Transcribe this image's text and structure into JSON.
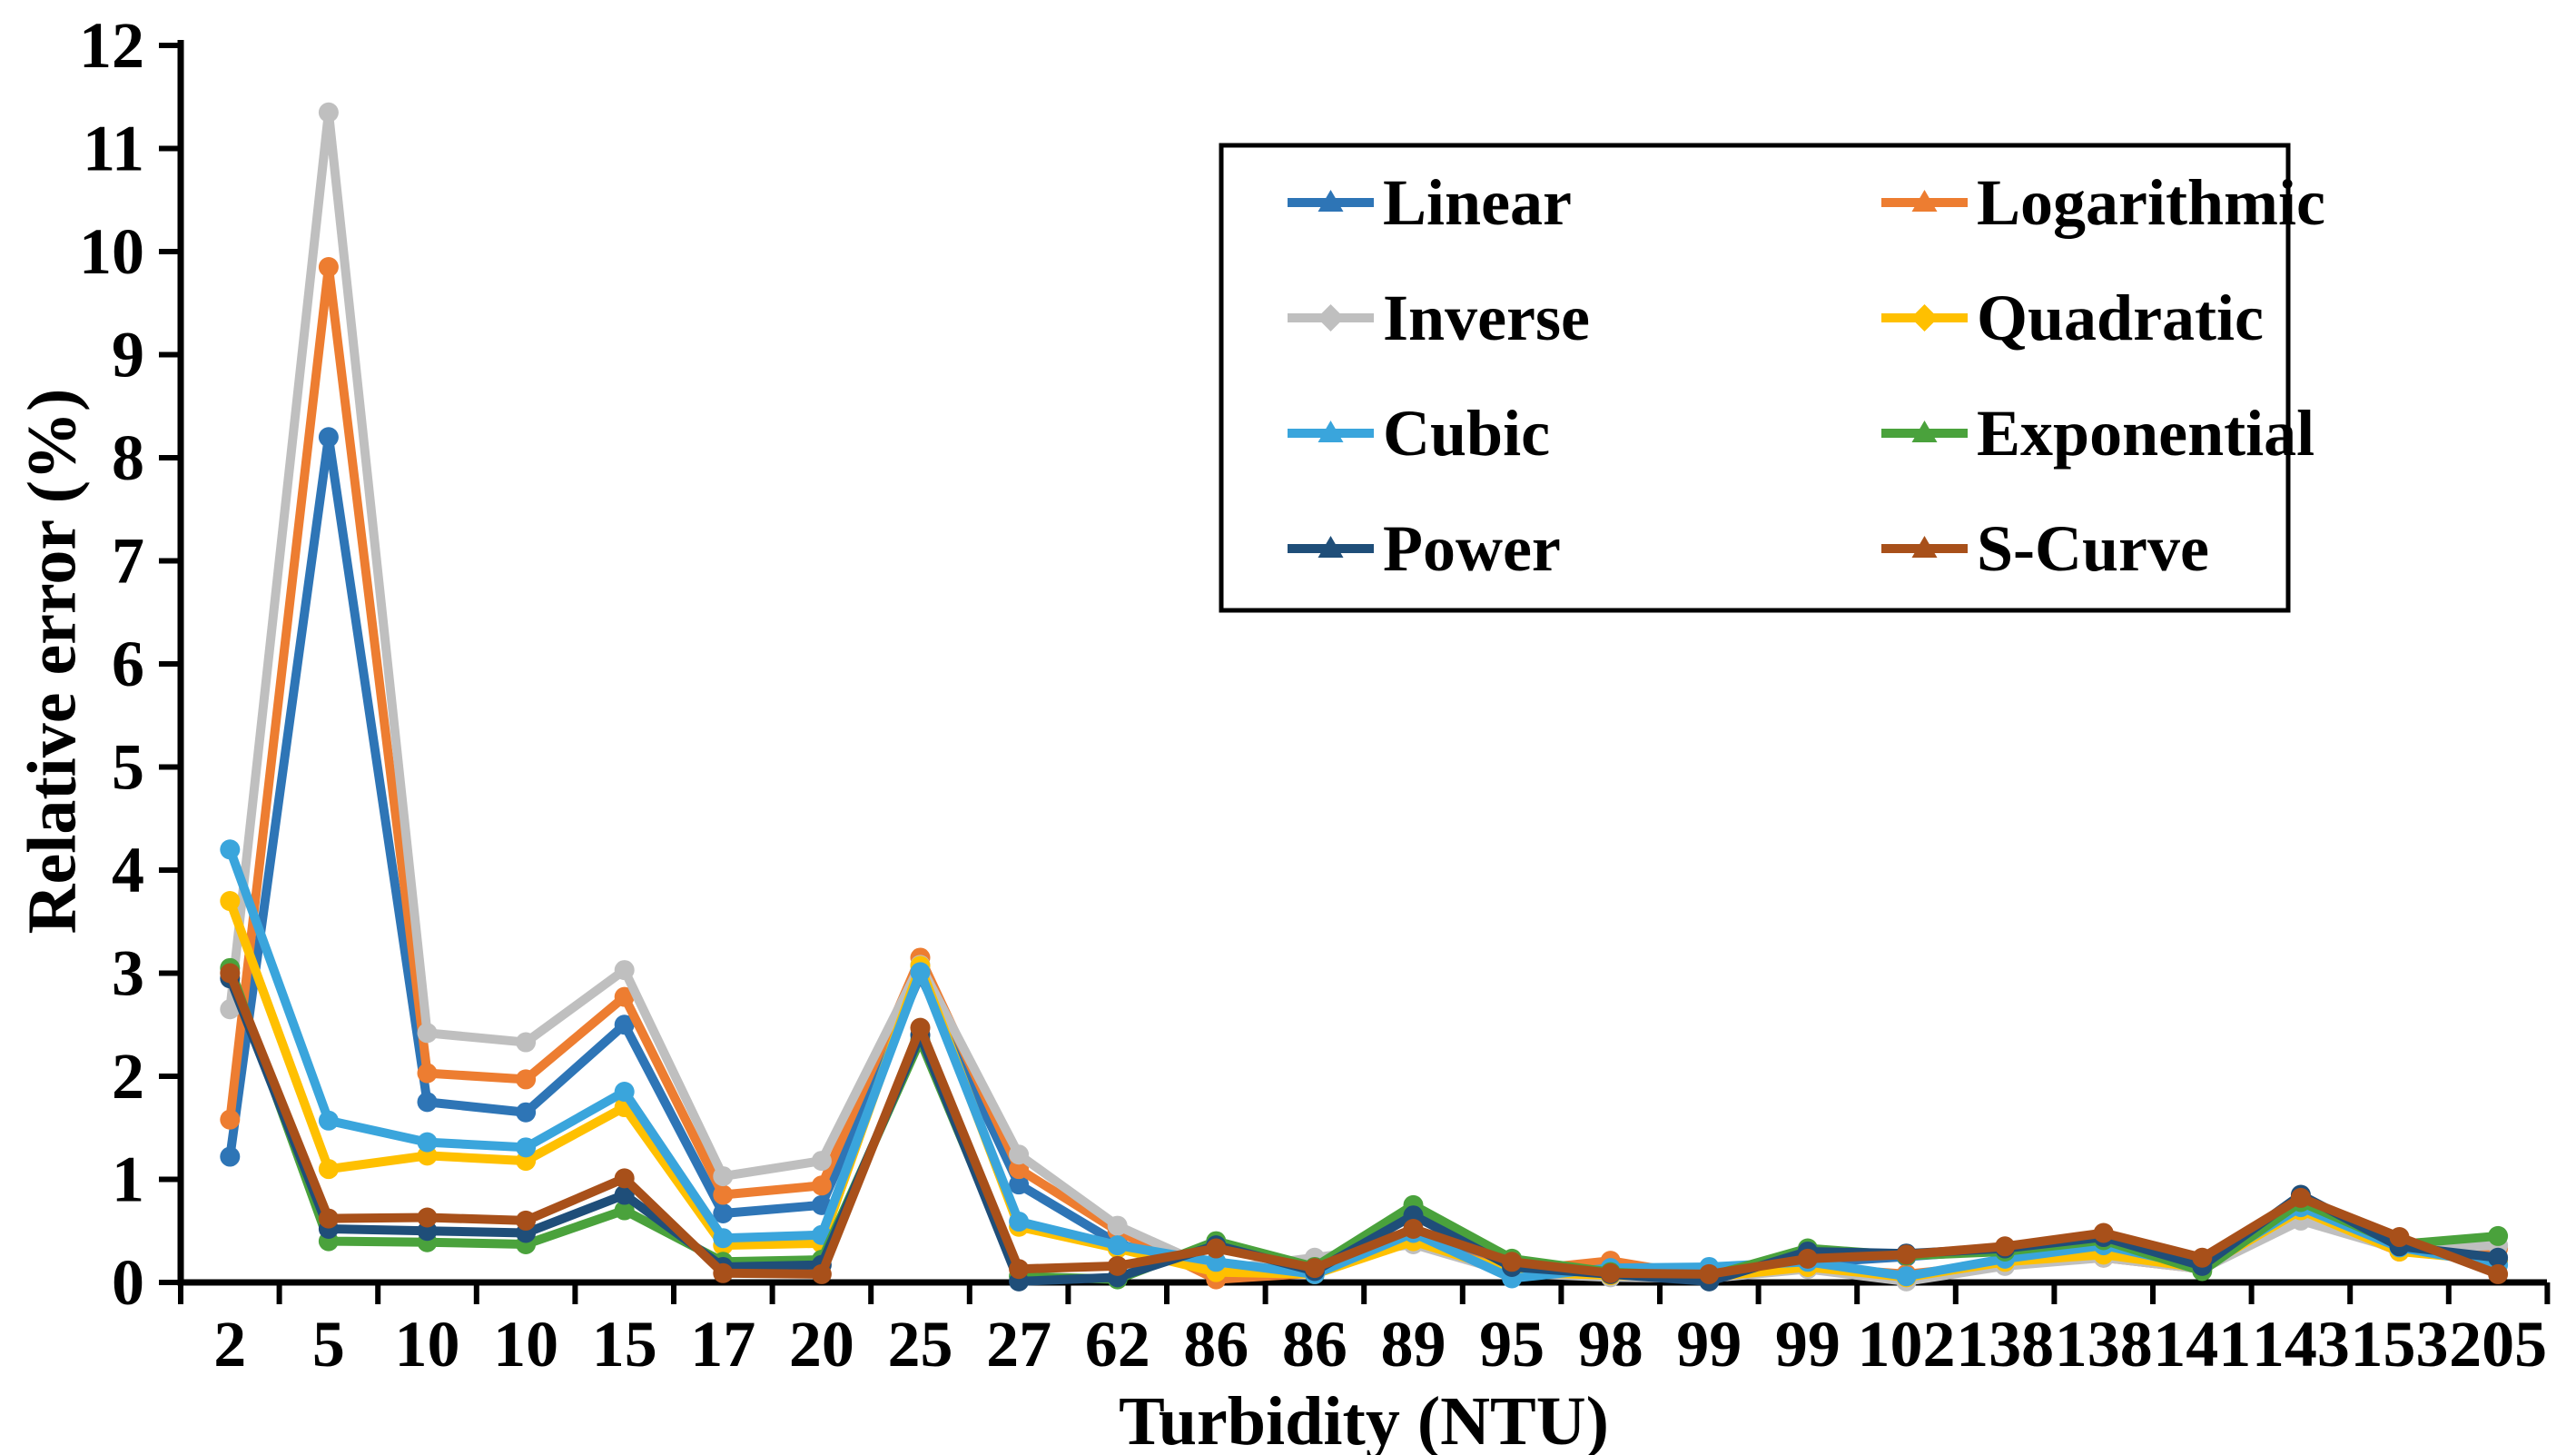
{
  "figure": {
    "background": "#ffffff",
    "axis_color": "#000000",
    "legend_border_color": "#000000"
  },
  "chart_data": {
    "type": "line",
    "title": "",
    "xlabel": "Turbidity (NTU)",
    "ylabel": "Relative error (%)",
    "ylim": [
      0,
      12
    ],
    "y_tick_step": 1,
    "y_ticks": [
      0,
      1,
      2,
      3,
      4,
      5,
      6,
      7,
      8,
      9,
      10,
      11,
      12
    ],
    "grid": false,
    "legend_position": "top-right-box",
    "categories": [
      "2",
      "5",
      "10",
      "10",
      "15",
      "17",
      "20",
      "25",
      "27",
      "62",
      "86",
      "86",
      "89",
      "95",
      "98",
      "99",
      "99",
      "102",
      "138",
      "138",
      "141",
      "143",
      "153",
      "205"
    ],
    "series": [
      {
        "name": "Linear",
        "color": "#2E75B6",
        "marker": "triangle",
        "values": [
          1.22,
          8.2,
          1.75,
          1.65,
          2.5,
          0.67,
          0.75,
          2.98,
          0.95,
          0.38,
          0.09,
          0.1,
          0.45,
          0.12,
          0.08,
          0.05,
          0.19,
          0.25,
          0.32,
          0.4,
          0.15,
          0.8,
          0.33,
          0.22
        ]
      },
      {
        "name": "Logarithmic",
        "color": "#ED7D31",
        "marker": "triangle",
        "values": [
          1.58,
          9.85,
          2.03,
          1.97,
          2.77,
          0.85,
          0.94,
          3.15,
          1.1,
          0.5,
          0.03,
          0.09,
          0.41,
          0.11,
          0.21,
          0.05,
          0.15,
          0.08,
          0.18,
          0.24,
          0.13,
          0.68,
          0.3,
          0.33
        ]
      },
      {
        "name": "Inverse",
        "color": "#BFBFBF",
        "marker": "diamond",
        "values": [
          2.65,
          11.35,
          2.42,
          2.33,
          3.03,
          1.03,
          1.18,
          3.08,
          1.24,
          0.55,
          0.12,
          0.24,
          0.37,
          0.09,
          0.05,
          0.04,
          0.13,
          0.01,
          0.16,
          0.24,
          0.13,
          0.6,
          0.32,
          0.36
        ]
      },
      {
        "name": "Quadratic",
        "color": "#FFC000",
        "marker": "diamond",
        "values": [
          3.7,
          1.1,
          1.23,
          1.18,
          1.7,
          0.36,
          0.38,
          3.07,
          0.54,
          0.33,
          0.1,
          0.08,
          0.4,
          0.1,
          0.07,
          0.05,
          0.15,
          0.05,
          0.2,
          0.27,
          0.14,
          0.7,
          0.3,
          0.21
        ]
      },
      {
        "name": "Cubic",
        "color": "#3AA5DC",
        "marker": "triangle",
        "values": [
          4.2,
          1.57,
          1.36,
          1.31,
          1.85,
          0.43,
          0.46,
          3.01,
          0.59,
          0.36,
          0.2,
          0.08,
          0.48,
          0.04,
          0.14,
          0.15,
          0.2,
          0.06,
          0.23,
          0.36,
          0.15,
          0.73,
          0.34,
          0.17
        ]
      },
      {
        "name": "Exponential",
        "color": "#4AA23C",
        "marker": "triangle",
        "values": [
          3.05,
          0.4,
          0.39,
          0.37,
          0.7,
          0.2,
          0.22,
          2.35,
          0.06,
          0.03,
          0.4,
          0.15,
          0.75,
          0.23,
          0.1,
          0.06,
          0.33,
          0.26,
          0.3,
          0.41,
          0.11,
          0.78,
          0.37,
          0.45
        ]
      },
      {
        "name": "Power",
        "color": "#1F4E79",
        "marker": "triangle",
        "values": [
          2.95,
          0.52,
          0.5,
          0.48,
          0.85,
          0.15,
          0.17,
          2.4,
          0.01,
          0.05,
          0.36,
          0.11,
          0.65,
          0.15,
          0.08,
          0.01,
          0.3,
          0.28,
          0.33,
          0.44,
          0.16,
          0.85,
          0.35,
          0.24
        ]
      },
      {
        "name": "S-Curve",
        "color": "#A8501A",
        "marker": "triangle",
        "values": [
          3.0,
          0.62,
          0.63,
          0.6,
          1.01,
          0.09,
          0.08,
          2.47,
          0.13,
          0.16,
          0.33,
          0.14,
          0.52,
          0.2,
          0.09,
          0.08,
          0.23,
          0.27,
          0.35,
          0.48,
          0.24,
          0.82,
          0.44,
          0.08
        ]
      }
    ]
  }
}
